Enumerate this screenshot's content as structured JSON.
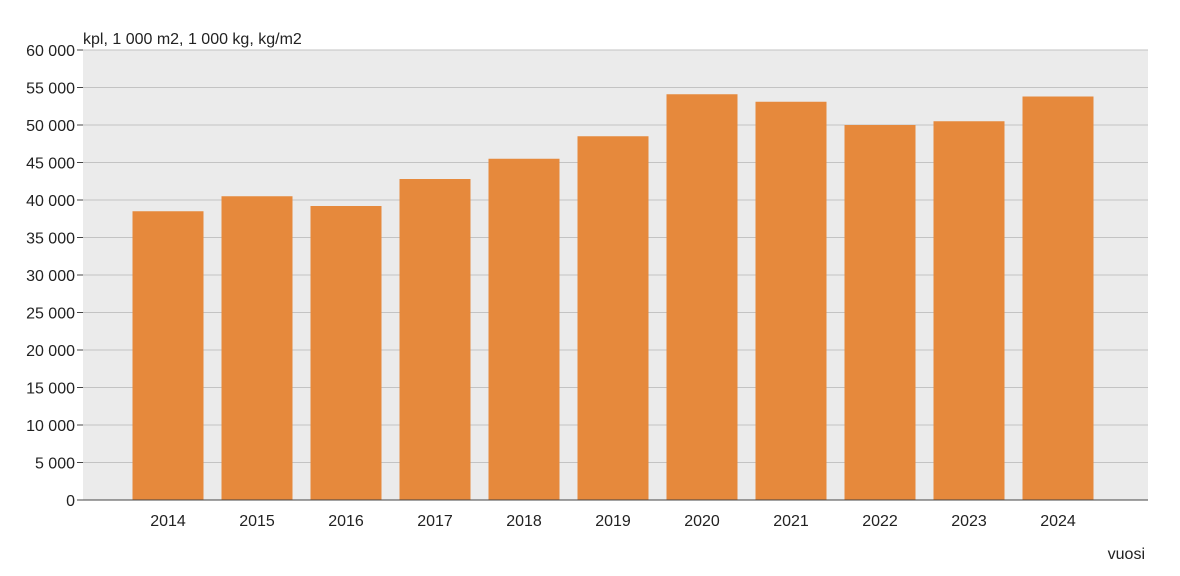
{
  "chart_data": {
    "type": "bar",
    "ylabel": "kpl, 1 000 m2, 1 000 kg, kg/m2",
    "xlabel": "vuosi",
    "categories": [
      "2014",
      "2015",
      "2016",
      "2017",
      "2018",
      "2019",
      "2020",
      "2021",
      "2022",
      "2023",
      "2024"
    ],
    "series": [
      {
        "values": [
          38500,
          40500,
          39200,
          42800,
          45500,
          48500,
          54100,
          53100,
          50000,
          50500,
          53800
        ]
      }
    ],
    "ylim": [
      0,
      60000
    ],
    "yticks": [
      0,
      5000,
      10000,
      15000,
      20000,
      25000,
      30000,
      35000,
      40000,
      45000,
      50000,
      55000,
      60000
    ],
    "ytick_labels": [
      "0",
      "5 000",
      "10 000",
      "15 000",
      "20 000",
      "25 000",
      "30 000",
      "35 000",
      "40 000",
      "45 000",
      "50 000",
      "55 000",
      "60 000"
    ],
    "grid": true,
    "legend": "none",
    "colors": {
      "bar": "#e6893c",
      "plot_bg": "#ebebeb",
      "grid": "#c3c3c3",
      "axis": "#444444"
    }
  }
}
